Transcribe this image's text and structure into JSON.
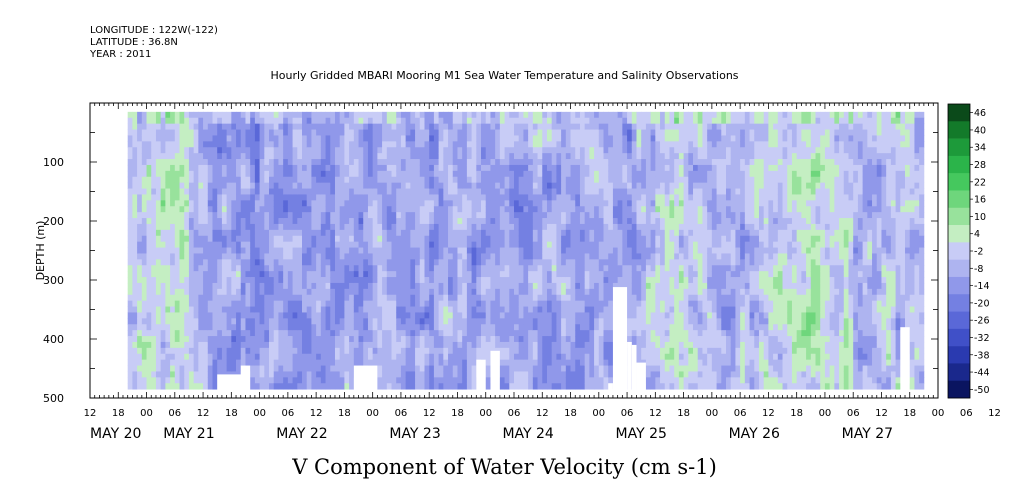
{
  "header": {
    "longitude": "LONGITUDE : 122W(-122)",
    "latitude": "LATITUDE : 36.8N",
    "year": "YEAR : 2011"
  },
  "chart_title": "Hourly Gridded MBARI Mooring M1 Sea Water Temperature and Salinity Observations",
  "variable_title": "V Component of Water Velocity (cm s-1)",
  "chart_data": {
    "type": "heatmap",
    "title": "Hourly Gridded MBARI Mooring M1 Sea Water Temperature and Salinity Observations",
    "xlabel": "",
    "ylabel": "DEPTH (m)",
    "x_range_hours": [
      0,
      180
    ],
    "x_origin_label": "MAY 20 12:00",
    "ylim": [
      500,
      0
    ],
    "yticks": [
      100,
      200,
      300,
      400,
      500
    ],
    "hour_tick_labels": [
      "12",
      "18",
      "00",
      "06",
      "12",
      "18",
      "00",
      "06",
      "12",
      "18",
      "00",
      "06",
      "12",
      "18",
      "00",
      "06",
      "12",
      "18",
      "00",
      "06",
      "12",
      "18",
      "00",
      "06",
      "12",
      "18",
      "00",
      "06",
      "12",
      "18",
      "00",
      "06",
      "12"
    ],
    "date_labels": [
      {
        "label": "MAY 20",
        "hour": 0
      },
      {
        "label": "MAY 21",
        "hour": 21
      },
      {
        "label": "MAY 22",
        "hour": 45
      },
      {
        "label": "MAY 23",
        "hour": 69
      },
      {
        "label": "MAY 24",
        "hour": 93
      },
      {
        "label": "MAY 25",
        "hour": 117
      },
      {
        "label": "MAY 26",
        "hour": 141
      },
      {
        "label": "MAY 27",
        "hour": 165
      }
    ],
    "data_depth_range": [
      15,
      485
    ],
    "data_hour_range": [
      8,
      177
    ],
    "colorbar": {
      "labels": [
        "46",
        "40",
        "34",
        "28",
        "22",
        "16",
        "10",
        "4",
        "-2",
        "-8",
        "-14",
        "-20",
        "-26",
        "-32",
        "-38",
        "-44",
        "-50"
      ],
      "colors": [
        "#0b4a1a",
        "#137a2a",
        "#1d9a3a",
        "#2bb44a",
        "#45c85e",
        "#6ed67c",
        "#98e29c",
        "#c4eec2",
        "#c8ccf6",
        "#aeb4f0",
        "#9098ea",
        "#7480e2",
        "#5a68d8",
        "#4050c8",
        "#2a3ab0",
        "#1a288c",
        "#0a1460"
      ]
    },
    "blank_regions": [
      {
        "hour_start": 27,
        "hour_end": 33,
        "depth_top": 460
      },
      {
        "hour_start": 32,
        "hour_end": 34,
        "depth_top": 445
      },
      {
        "hour_start": 56,
        "hour_end": 61,
        "depth_top": 445
      },
      {
        "hour_start": 82,
        "hour_end": 84,
        "depth_top": 435
      },
      {
        "hour_start": 85,
        "hour_end": 87,
        "depth_top": 420
      },
      {
        "hour_start": 110,
        "hour_end": 111,
        "depth_top": 475
      },
      {
        "hour_start": 111,
        "hour_end": 114,
        "depth_top": 312
      },
      {
        "hour_start": 114,
        "hour_end": 115,
        "depth_top": 405
      },
      {
        "hour_start": 115,
        "hour_end": 116,
        "depth_top": 410
      },
      {
        "hour_start": 116,
        "hour_end": 118,
        "depth_top": 440
      },
      {
        "hour_start": 172,
        "hour_end": 174,
        "depth_top": 380
      }
    ]
  }
}
